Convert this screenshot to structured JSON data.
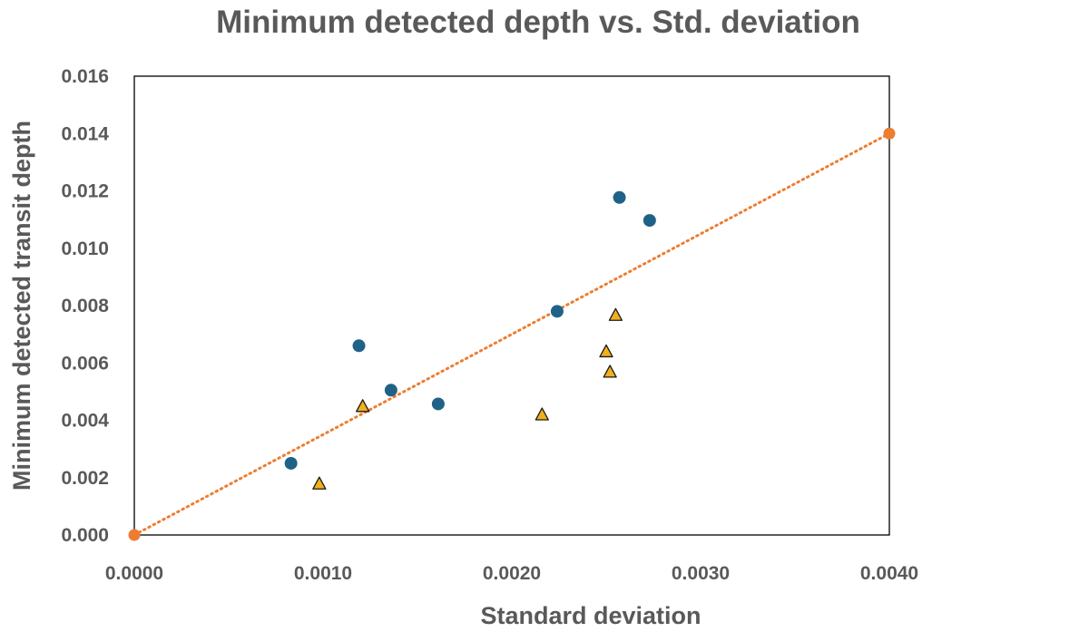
{
  "chart_data": {
    "type": "scatter",
    "title": "Minimum detected depth vs. Std. deviation",
    "xlabel": "Standard deviation",
    "ylabel": "Minimum detected transit depth",
    "xlim": [
      0,
      0.004
    ],
    "ylim": [
      0,
      0.016
    ],
    "x_ticks": [
      "0.0000",
      "0.0010",
      "0.0020",
      "0.0030",
      "0.0040"
    ],
    "y_ticks": [
      "0.000",
      "0.002",
      "0.004",
      "0.006",
      "0.008",
      "0.010",
      "0.012",
      "0.014",
      "0.016"
    ],
    "x_tick_values": [
      0,
      0.001,
      0.002,
      0.003,
      0.004
    ],
    "y_tick_values": [
      0,
      0.002,
      0.004,
      0.006,
      0.008,
      0.01,
      0.012,
      0.014,
      0.016
    ],
    "grid": false,
    "series": [
      {
        "marker": "circle",
        "color": "#1f6287",
        "points": [
          {
            "x": 0.00083,
            "y": 0.0025
          },
          {
            "x": 0.00119,
            "y": 0.0066
          },
          {
            "x": 0.00136,
            "y": 0.00505
          },
          {
            "x": 0.00161,
            "y": 0.00457
          },
          {
            "x": 0.00224,
            "y": 0.0078
          },
          {
            "x": 0.00257,
            "y": 0.01177
          },
          {
            "x": 0.00273,
            "y": 0.01097
          }
        ]
      },
      {
        "marker": "triangle",
        "color": "#f2b01e",
        "points": [
          {
            "x": 0.00098,
            "y": 0.00177
          },
          {
            "x": 0.00121,
            "y": 0.00447
          },
          {
            "x": 0.00216,
            "y": 0.00418
          },
          {
            "x": 0.0025,
            "y": 0.00638
          },
          {
            "x": 0.00252,
            "y": 0.00567
          },
          {
            "x": 0.00255,
            "y": 0.00765
          }
        ]
      },
      {
        "marker": "dotted-line",
        "color": "#ed7d31",
        "points": [
          {
            "x": 0,
            "y": 0
          },
          {
            "x": 0.004,
            "y": 0.014
          }
        ]
      }
    ]
  }
}
